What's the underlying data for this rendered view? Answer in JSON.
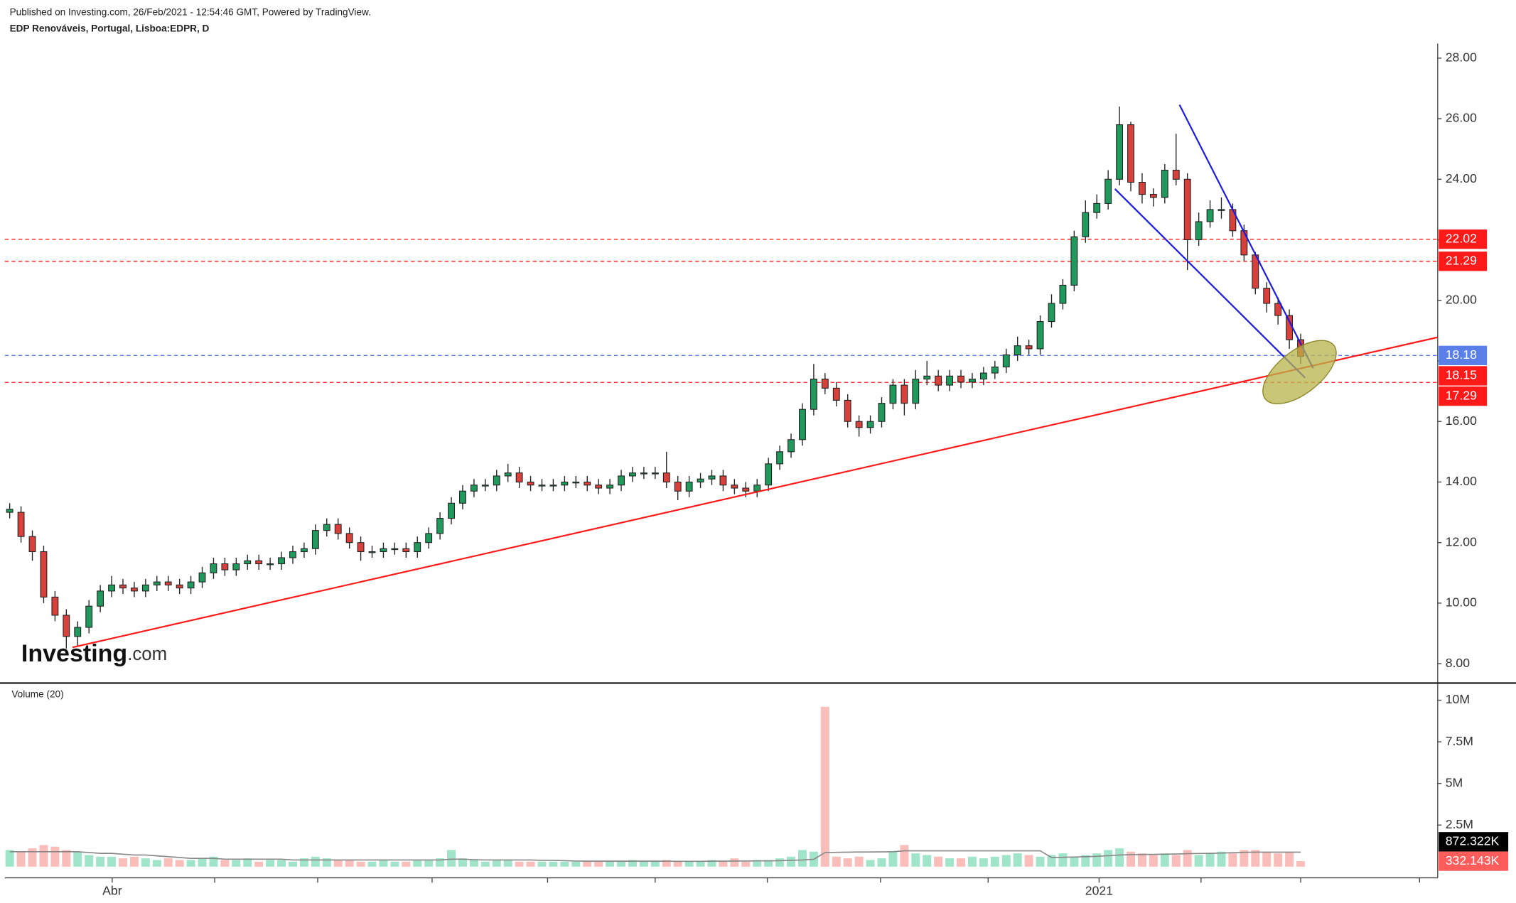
{
  "header": {
    "published": "Published on Investing.com, 26/Feb/2021 - 12:54:46 GMT, Powered by TradingView.",
    "symbol": "EDP Renováveis, Portugal, Lisboa:EDPR, D"
  },
  "logo": {
    "brand": "Investing",
    "suffix": ".com"
  },
  "chart_data": {
    "type": "candlestick",
    "open": [
      13.0,
      13.0,
      12.2,
      11.7,
      10.2,
      9.6,
      8.9,
      9.2,
      9.9,
      10.4,
      10.6,
      10.5,
      10.4,
      10.6,
      10.7,
      10.6,
      10.5,
      10.7,
      11.0,
      11.3,
      11.1,
      11.3,
      11.4,
      11.3,
      11.3,
      11.5,
      11.7,
      11.8,
      12.4,
      12.6,
      12.3,
      12.0,
      11.7,
      11.7,
      11.8,
      11.8,
      11.7,
      12.0,
      12.3,
      12.8,
      13.3,
      13.7,
      13.9,
      13.9,
      14.2,
      14.3,
      14.0,
      13.9,
      13.9,
      13.9,
      14.0,
      14.0,
      13.9,
      13.8,
      13.9,
      14.2,
      14.3,
      14.3,
      14.3,
      14.0,
      13.7,
      14.0,
      14.1,
      14.2,
      13.9,
      13.8,
      13.7,
      13.9,
      14.6,
      15.0,
      15.4,
      16.4,
      17.4,
      17.1,
      16.7,
      16.0,
      15.8,
      16.0,
      16.6,
      17.2,
      16.6,
      17.4,
      17.5,
      17.2,
      17.5,
      17.3,
      17.4,
      17.6,
      17.8,
      18.2,
      18.5,
      18.4,
      19.3,
      19.9,
      20.5,
      22.1,
      22.9,
      23.2,
      24.0,
      25.8,
      23.9,
      23.5,
      23.4,
      24.3,
      24.0,
      22.0,
      22.6,
      23.0,
      23.0,
      22.3,
      21.5,
      20.4,
      19.9,
      19.5,
      18.7
    ],
    "high": [
      13.3,
      13.2,
      12.4,
      11.9,
      10.4,
      9.8,
      9.4,
      10.1,
      10.6,
      10.9,
      10.8,
      10.7,
      10.8,
      10.9,
      10.9,
      10.8,
      10.9,
      11.2,
      11.5,
      11.5,
      11.5,
      11.6,
      11.6,
      11.5,
      11.7,
      11.9,
      12.0,
      12.6,
      12.8,
      12.8,
      12.5,
      12.2,
      11.9,
      12.0,
      12.0,
      12.0,
      12.2,
      12.5,
      13.0,
      13.5,
      13.9,
      14.1,
      14.1,
      14.4,
      14.6,
      14.5,
      14.2,
      14.1,
      14.1,
      14.2,
      14.2,
      14.2,
      14.1,
      14.1,
      14.4,
      14.5,
      14.5,
      14.5,
      15.0,
      14.2,
      14.2,
      14.3,
      14.4,
      14.4,
      14.1,
      14.0,
      14.1,
      14.8,
      15.2,
      15.6,
      16.6,
      17.9,
      17.6,
      17.3,
      16.9,
      16.2,
      16.2,
      16.8,
      17.4,
      17.4,
      17.7,
      18.0,
      17.7,
      17.7,
      17.7,
      17.6,
      17.8,
      18.0,
      18.4,
      18.8,
      18.7,
      19.5,
      20.2,
      20.7,
      22.3,
      23.3,
      23.5,
      24.3,
      26.4,
      25.9,
      24.2,
      23.7,
      24.5,
      25.5,
      24.2,
      22.9,
      23.3,
      23.4,
      23.2,
      22.5,
      21.6,
      20.6,
      20.1,
      19.7,
      18.9
    ],
    "low": [
      12.8,
      12.0,
      11.4,
      10.0,
      9.4,
      8.5,
      8.6,
      9.0,
      9.7,
      10.2,
      10.3,
      10.2,
      10.2,
      10.4,
      10.4,
      10.3,
      10.3,
      10.5,
      10.8,
      10.9,
      10.9,
      11.1,
      11.1,
      11.1,
      11.1,
      11.3,
      11.5,
      11.6,
      12.2,
      12.1,
      11.8,
      11.4,
      11.5,
      11.5,
      11.6,
      11.5,
      11.5,
      11.8,
      12.1,
      12.6,
      13.1,
      13.5,
      13.7,
      13.7,
      14.0,
      13.8,
      13.7,
      13.7,
      13.7,
      13.7,
      13.8,
      13.7,
      13.6,
      13.6,
      13.7,
      14.0,
      14.1,
      14.1,
      13.8,
      13.4,
      13.5,
      13.8,
      13.9,
      13.7,
      13.6,
      13.5,
      13.5,
      13.7,
      14.4,
      14.8,
      15.2,
      16.2,
      16.9,
      16.5,
      15.8,
      15.5,
      15.6,
      15.8,
      16.4,
      16.2,
      16.4,
      17.2,
      17.0,
      17.0,
      17.1,
      17.1,
      17.2,
      17.4,
      17.6,
      18.0,
      18.2,
      18.2,
      19.1,
      19.7,
      20.3,
      21.9,
      22.7,
      23.0,
      23.8,
      23.6,
      23.2,
      23.1,
      23.2,
      23.8,
      21.0,
      21.8,
      22.4,
      22.7,
      22.1,
      21.3,
      20.2,
      19.6,
      19.2,
      18.4,
      17.9
    ],
    "close": [
      13.1,
      12.2,
      11.7,
      10.2,
      9.6,
      8.9,
      9.2,
      9.9,
      10.4,
      10.6,
      10.5,
      10.4,
      10.6,
      10.7,
      10.6,
      10.5,
      10.7,
      11.0,
      11.3,
      11.1,
      11.3,
      11.4,
      11.3,
      11.3,
      11.5,
      11.7,
      11.8,
      12.4,
      12.6,
      12.3,
      12.0,
      11.7,
      11.7,
      11.8,
      11.8,
      11.7,
      12.0,
      12.3,
      12.8,
      13.3,
      13.7,
      13.9,
      13.9,
      14.2,
      14.3,
      14.0,
      13.9,
      13.9,
      13.9,
      14.0,
      14.0,
      13.9,
      13.8,
      13.9,
      14.2,
      14.3,
      14.3,
      14.3,
      14.0,
      13.7,
      14.0,
      14.1,
      14.2,
      13.9,
      13.8,
      13.7,
      13.9,
      14.6,
      15.0,
      15.4,
      16.4,
      17.4,
      17.1,
      16.7,
      16.0,
      15.8,
      16.0,
      16.6,
      17.2,
      16.6,
      17.4,
      17.5,
      17.2,
      17.5,
      17.3,
      17.4,
      17.6,
      17.8,
      18.2,
      18.5,
      18.4,
      19.3,
      19.9,
      20.5,
      22.1,
      22.9,
      23.2,
      24.0,
      25.8,
      23.9,
      23.5,
      23.4,
      24.3,
      24.0,
      22.0,
      22.6,
      23.0,
      23.0,
      22.3,
      21.5,
      20.4,
      19.9,
      19.5,
      18.7,
      18.15
    ],
    "up_color": "#1f9a5c",
    "down_color": "#d8413b",
    "ylim": [
      7.36,
      28.48
    ],
    "yticks": [
      {
        "value": 28,
        "label": "28.00"
      },
      {
        "value": 26,
        "label": "26.00"
      },
      {
        "value": 24,
        "label": "24.00"
      },
      {
        "value": 22,
        "label": "22.00"
      },
      {
        "value": 20,
        "label": "20.00"
      },
      {
        "value": 18,
        "label": "18.00"
      },
      {
        "value": 16,
        "label": "16.00"
      },
      {
        "value": 14,
        "label": "14.00"
      },
      {
        "value": 12,
        "label": "12.00"
      },
      {
        "value": 10,
        "label": "10.00"
      },
      {
        "value": 8,
        "label": "8.00"
      }
    ],
    "xlim": [
      -0.43,
      126.1
    ],
    "xticks": [
      {
        "value": 9.05,
        "label": "Abr"
      },
      {
        "value": 18.1,
        "label": null
      },
      {
        "value": 27.2,
        "label": null
      },
      {
        "value": 37.3,
        "label": null
      },
      {
        "value": 47.5,
        "label": null
      },
      {
        "value": 57.0,
        "label": null
      },
      {
        "value": 66.9,
        "label": null
      },
      {
        "value": 76.9,
        "label": null
      },
      {
        "value": 86.4,
        "label": null
      },
      {
        "value": 96.2,
        "label": "2021"
      },
      {
        "value": 105.2,
        "label": null
      },
      {
        "value": 114.0,
        "label": null
      },
      {
        "value": 124.5,
        "label": null
      }
    ],
    "price_labels": [
      {
        "value": 22.02,
        "color": "#ff1a1a",
        "line": true
      },
      {
        "value": 21.29,
        "color": "#ff1a1a",
        "line": true
      },
      {
        "value": 18.18,
        "color": "#5b7fe8",
        "line": true
      },
      {
        "value": 18.15,
        "color": "#ff1a1a",
        "line": false
      },
      {
        "value": 17.29,
        "color": "#ff1a1a",
        "line": true
      }
    ],
    "trendlines": [
      {
        "x": [
          5.55,
          126.1
        ],
        "y": [
          8.54,
          18.78
        ],
        "color": "#ff1a1a"
      },
      {
        "x": [
          97.6,
          114.4
        ],
        "y": [
          23.68,
          17.44
        ],
        "color": "#1a1ae6"
      },
      {
        "x": [
          103.3,
          115.1
        ],
        "y": [
          26.46,
          17.76
        ],
        "color": "#1a1ae6"
      }
    ],
    "ellipse": {
      "x": 113.9,
      "y": 17.63,
      "color": "#b8b34a"
    },
    "volume": {
      "title": "Volume (20)",
      "up_color": "#8fe0c0",
      "down_color": "#f8b3ae",
      "ma_color": "#888888",
      "values": [
        1.0,
        0.9,
        1.1,
        1.3,
        1.2,
        1.0,
        0.9,
        0.7,
        0.6,
        0.6,
        0.5,
        0.6,
        0.5,
        0.4,
        0.5,
        0.4,
        0.4,
        0.5,
        0.6,
        0.4,
        0.4,
        0.5,
        0.3,
        0.4,
        0.4,
        0.3,
        0.5,
        0.6,
        0.5,
        0.4,
        0.4,
        0.3,
        0.3,
        0.4,
        0.3,
        0.3,
        0.4,
        0.4,
        0.5,
        1.0,
        0.5,
        0.4,
        0.3,
        0.4,
        0.4,
        0.3,
        0.3,
        0.3,
        0.3,
        0.3,
        0.3,
        0.3,
        0.3,
        0.3,
        0.3,
        0.4,
        0.3,
        0.3,
        0.4,
        0.3,
        0.3,
        0.3,
        0.4,
        0.3,
        0.5,
        0.3,
        0.4,
        0.4,
        0.5,
        0.6,
        1.0,
        0.9,
        9.6,
        0.6,
        0.5,
        0.6,
        0.4,
        0.5,
        0.9,
        1.3,
        0.8,
        0.7,
        0.6,
        0.5,
        0.5,
        0.6,
        0.5,
        0.6,
        0.7,
        0.8,
        0.7,
        0.6,
        0.7,
        0.8,
        0.6,
        0.7,
        0.8,
        1.0,
        1.1,
        0.9,
        0.8,
        0.7,
        0.8,
        0.7,
        1.0,
        0.7,
        0.8,
        0.9,
        0.8,
        1.0,
        1.0,
        0.9,
        0.8,
        0.9,
        0.332143
      ],
      "ma": [
        0.9,
        0.9,
        0.9,
        0.9,
        0.9,
        0.9,
        0.9,
        0.85,
        0.8,
        0.8,
        0.75,
        0.7,
        0.7,
        0.65,
        0.6,
        0.55,
        0.5,
        0.5,
        0.5,
        0.45,
        0.45,
        0.45,
        0.45,
        0.45,
        0.45,
        0.4,
        0.4,
        0.4,
        0.4,
        0.4,
        0.4,
        0.4,
        0.4,
        0.4,
        0.4,
        0.4,
        0.4,
        0.4,
        0.4,
        0.45,
        0.45,
        0.42,
        0.4,
        0.4,
        0.4,
        0.4,
        0.4,
        0.38,
        0.38,
        0.36,
        0.34,
        0.33,
        0.33,
        0.33,
        0.33,
        0.33,
        0.33,
        0.33,
        0.33,
        0.32,
        0.32,
        0.32,
        0.33,
        0.33,
        0.34,
        0.34,
        0.35,
        0.35,
        0.36,
        0.38,
        0.4,
        0.44,
        0.85,
        0.86,
        0.87,
        0.88,
        0.88,
        0.89,
        0.9,
        0.95,
        0.95,
        0.95,
        0.95,
        0.95,
        0.95,
        0.95,
        0.95,
        0.95,
        0.95,
        0.95,
        0.95,
        0.95,
        0.55,
        0.56,
        0.58,
        0.6,
        0.62,
        0.66,
        0.7,
        0.72,
        0.73,
        0.74,
        0.75,
        0.76,
        0.78,
        0.79,
        0.8,
        0.82,
        0.84,
        0.86,
        0.87,
        0.87,
        0.87,
        0.87,
        0.872322
      ],
      "ylim": [
        0,
        11.03
      ],
      "yticks": [
        {
          "value": 10,
          "label": "10M"
        },
        {
          "value": 7.5,
          "label": "7.5M"
        },
        {
          "value": 5,
          "label": "5M"
        },
        {
          "value": 2.5,
          "label": "2.5M"
        }
      ],
      "value_labels": [
        {
          "value": 0.872322,
          "label": "872.322K",
          "color": "#000000"
        },
        {
          "value": 0.332143,
          "label": "332.143K",
          "color": "#ff5c5c"
        }
      ]
    }
  }
}
